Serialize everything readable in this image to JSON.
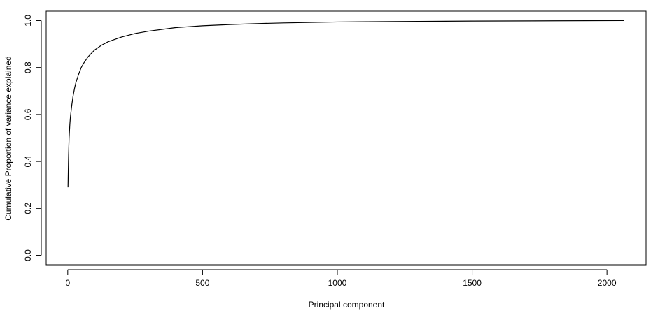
{
  "chart_data": {
    "type": "line",
    "title": "",
    "xlabel": "Principal component",
    "ylabel": "Cumulative Proportion of variance explained",
    "xlim": [
      -80,
      2145
    ],
    "ylim": [
      -0.04,
      1.04
    ],
    "xticks": [
      0,
      500,
      1000,
      1500,
      2000
    ],
    "xtick_labels": [
      "0",
      "500",
      "1000",
      "1500",
      "2000"
    ],
    "yticks": [
      0.0,
      0.2,
      0.4,
      0.6,
      0.8,
      1.0
    ],
    "ytick_labels": [
      "0.0",
      "0.2",
      "0.4",
      "0.6",
      "0.8",
      "1.0"
    ],
    "grid": false,
    "legend": "none",
    "line_color": "#000000",
    "series": [
      {
        "x": [
          1,
          2,
          3,
          5,
          8,
          10,
          15,
          20,
          25,
          30,
          40,
          50,
          60,
          75,
          100,
          125,
          150,
          200,
          250,
          300,
          400,
          500,
          600,
          700,
          800,
          1000,
          1200,
          1500,
          1800,
          2063
        ],
        "y": [
          0.29,
          0.36,
          0.42,
          0.5,
          0.56,
          0.59,
          0.64,
          0.68,
          0.71,
          0.735,
          0.77,
          0.8,
          0.82,
          0.845,
          0.875,
          0.895,
          0.91,
          0.93,
          0.945,
          0.955,
          0.97,
          0.978,
          0.983,
          0.987,
          0.99,
          0.994,
          0.996,
          0.998,
          0.999,
          1.0
        ]
      }
    ]
  }
}
